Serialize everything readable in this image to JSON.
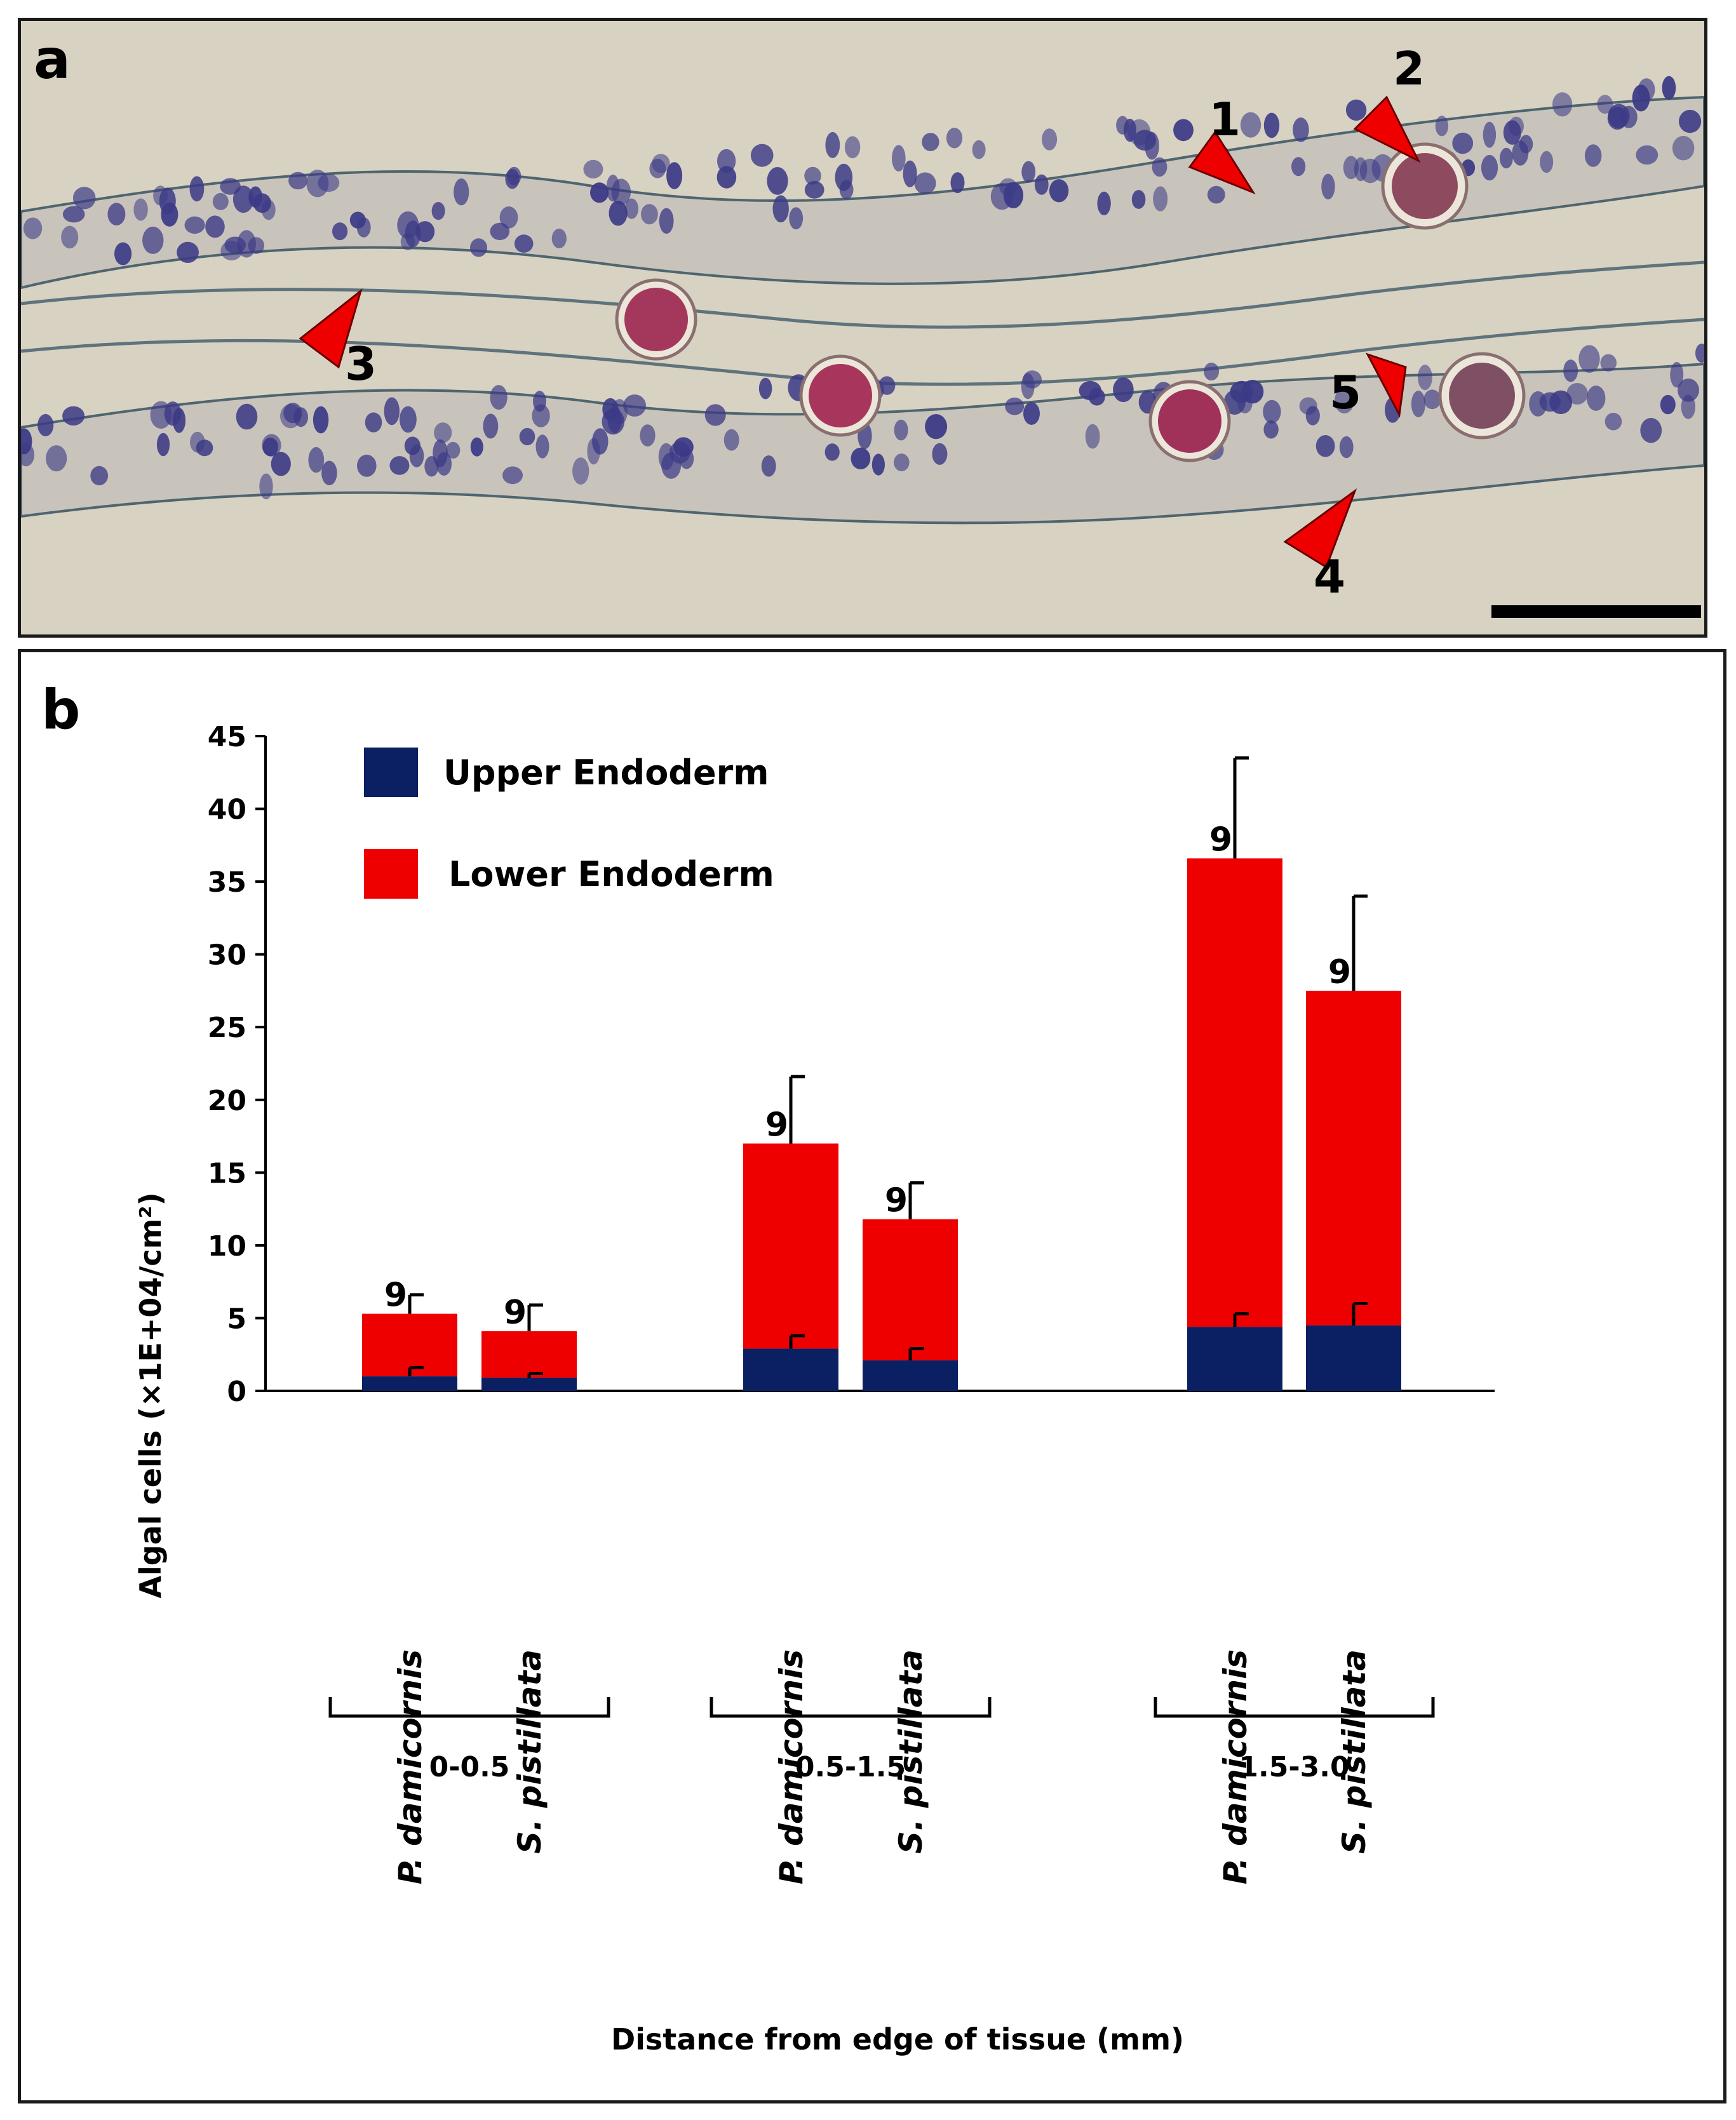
{
  "panel_a": {
    "label": "a",
    "arrow_labels": [
      "1",
      "2",
      "3",
      "4",
      "5"
    ]
  },
  "panel_b": {
    "label": "b"
  },
  "chart_data": {
    "type": "bar",
    "stacked": true,
    "ylabel": "Algal cells (×1E+04/cm²)",
    "xlabel": "Distance from edge of tissue (mm)",
    "ylim": [
      0,
      45
    ],
    "yticks": [
      0,
      5,
      10,
      15,
      20,
      25,
      30,
      35,
      40,
      45
    ],
    "groups": [
      {
        "label": "0-0.5",
        "categories": [
          "P. damicornis",
          "S. pistillata"
        ]
      },
      {
        "label": "0.5-1.5",
        "categories": [
          "P. damicornis",
          "S. pistillata"
        ]
      },
      {
        "label": "1.5-3.0",
        "categories": [
          "P. damicornis",
          "S. pistillata"
        ]
      }
    ],
    "series": [
      {
        "name": "Upper Endoderm",
        "color": "#0b1f63",
        "values": [
          1.0,
          0.9,
          2.9,
          2.1,
          4.4,
          4.5
        ],
        "errors": [
          0.6,
          0.3,
          0.9,
          0.8,
          0.9,
          1.5
        ]
      },
      {
        "name": "Lower Endoderm",
        "color": "#ee0000",
        "values": [
          4.3,
          3.2,
          14.1,
          9.7,
          32.2,
          23.0
        ],
        "errors": [
          1.3,
          1.8,
          4.6,
          2.5,
          6.9,
          6.5
        ]
      }
    ],
    "bar_labels": [
      "9",
      "9",
      "9",
      "9",
      "9",
      "9"
    ],
    "legend_position": "top-left"
  },
  "colors": {
    "background": "#ffffff",
    "micrograph_bg": "#d8d2c2",
    "tissue_stroke": "#5a6b76",
    "nucleus": "#3c3a86",
    "algal_cell": "#a83a5e",
    "arrow": "#ee0000"
  }
}
